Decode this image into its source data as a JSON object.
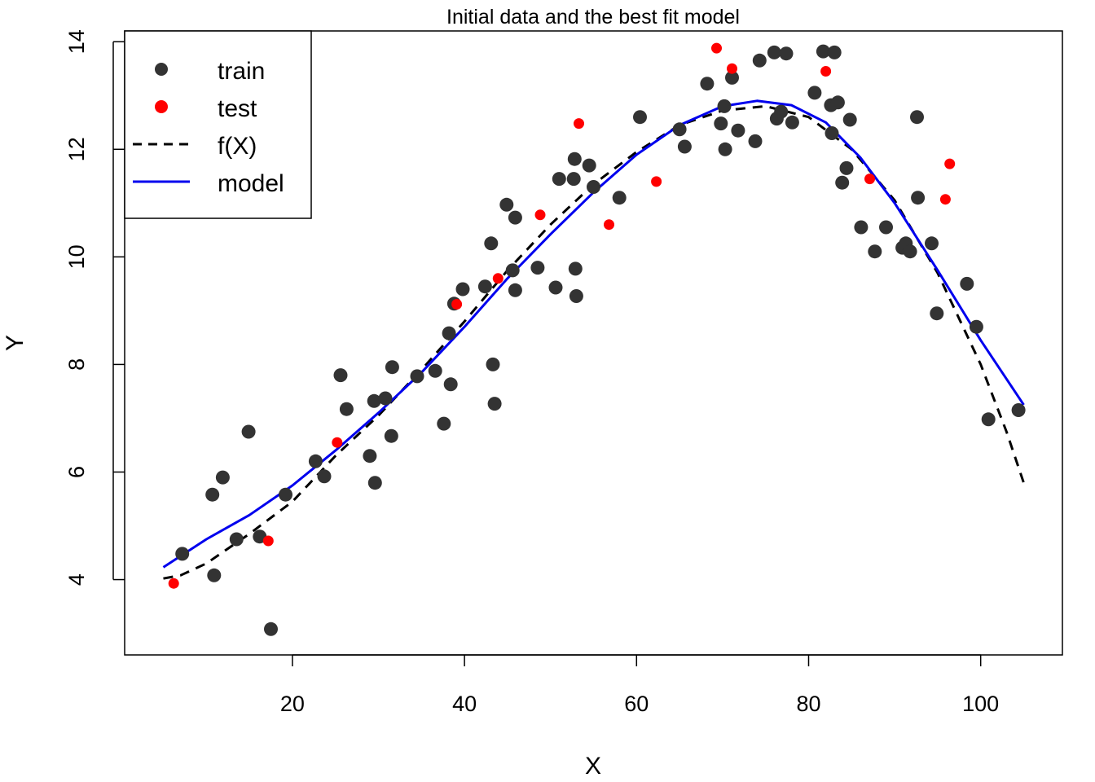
{
  "chart_data": {
    "type": "scatter",
    "title": "Initial data and the best fit model",
    "xlabel": "X",
    "ylabel": "Y",
    "xlim": [
      0.5,
      109.5
    ],
    "ylim": [
      2.6,
      14.2
    ],
    "xticks": [
      20,
      40,
      60,
      80,
      100
    ],
    "yticks": [
      4,
      6,
      8,
      10,
      12,
      14
    ],
    "grid": false,
    "legend_position": "top-left",
    "legend": [
      {
        "label": "train",
        "kind": "point",
        "color": "#333333"
      },
      {
        "label": "test",
        "kind": "point",
        "color": "#ff0000"
      },
      {
        "label": "f(X)",
        "kind": "dashed-line",
        "color": "#000000"
      },
      {
        "label": "model",
        "kind": "line",
        "color": "#0000ee"
      }
    ],
    "series": [
      {
        "name": "train",
        "color": "#333333",
        "points": [
          [
            7.2,
            4.48
          ],
          [
            10.9,
            4.08
          ],
          [
            10.7,
            5.58
          ],
          [
            11.9,
            5.9
          ],
          [
            13.5,
            4.75
          ],
          [
            14.9,
            6.75
          ],
          [
            16.2,
            4.8
          ],
          [
            17.5,
            3.08
          ],
          [
            19.2,
            5.58
          ],
          [
            22.7,
            6.2
          ],
          [
            23.7,
            5.92
          ],
          [
            25.6,
            7.8
          ],
          [
            26.3,
            7.17
          ],
          [
            29.0,
            6.3
          ],
          [
            29.5,
            7.32
          ],
          [
            29.6,
            5.8
          ],
          [
            30.8,
            7.37
          ],
          [
            31.5,
            6.67
          ],
          [
            31.6,
            7.95
          ],
          [
            34.5,
            7.78
          ],
          [
            36.6,
            7.88
          ],
          [
            37.6,
            6.9
          ],
          [
            38.2,
            8.58
          ],
          [
            38.4,
            7.63
          ],
          [
            38.8,
            9.13
          ],
          [
            39.8,
            9.4
          ],
          [
            42.4,
            9.45
          ],
          [
            43.1,
            10.25
          ],
          [
            43.3,
            8.0
          ],
          [
            43.5,
            7.27
          ],
          [
            44.9,
            10.97
          ],
          [
            45.6,
            9.75
          ],
          [
            45.9,
            10.73
          ],
          [
            45.9,
            9.38
          ],
          [
            48.5,
            9.8
          ],
          [
            50.6,
            9.43
          ],
          [
            51.0,
            11.45
          ],
          [
            52.7,
            11.45
          ],
          [
            52.8,
            11.82
          ],
          [
            52.9,
            9.78
          ],
          [
            53.0,
            9.27
          ],
          [
            54.5,
            11.7
          ],
          [
            55.0,
            11.3
          ],
          [
            58.0,
            11.1
          ],
          [
            60.4,
            12.6
          ],
          [
            65.0,
            12.37
          ],
          [
            65.6,
            12.05
          ],
          [
            68.2,
            13.22
          ],
          [
            69.8,
            12.48
          ],
          [
            70.2,
            12.8
          ],
          [
            70.3,
            12.0
          ],
          [
            71.1,
            13.33
          ],
          [
            71.8,
            12.35
          ],
          [
            73.8,
            12.15
          ],
          [
            74.3,
            13.65
          ],
          [
            76.0,
            13.8
          ],
          [
            76.3,
            12.57
          ],
          [
            76.8,
            12.7
          ],
          [
            77.4,
            13.78
          ],
          [
            78.1,
            12.5
          ],
          [
            80.7,
            13.05
          ],
          [
            81.7,
            13.82
          ],
          [
            82.6,
            12.82
          ],
          [
            82.7,
            12.3
          ],
          [
            83.0,
            13.8
          ],
          [
            83.4,
            12.87
          ],
          [
            83.9,
            11.38
          ],
          [
            84.4,
            11.65
          ],
          [
            84.8,
            12.55
          ],
          [
            86.1,
            10.55
          ],
          [
            87.7,
            10.1
          ],
          [
            89.0,
            10.55
          ],
          [
            90.9,
            10.17
          ],
          [
            91.3,
            10.25
          ],
          [
            91.8,
            10.1
          ],
          [
            92.6,
            12.6
          ],
          [
            92.7,
            11.1
          ],
          [
            94.3,
            10.25
          ],
          [
            94.9,
            8.95
          ],
          [
            98.4,
            9.5
          ],
          [
            99.5,
            8.7
          ],
          [
            100.9,
            6.98
          ],
          [
            104.4,
            7.15
          ]
        ]
      },
      {
        "name": "test",
        "color": "#ff0000",
        "points": [
          [
            6.2,
            3.93
          ],
          [
            17.2,
            4.72
          ],
          [
            25.2,
            6.55
          ],
          [
            39.1,
            9.12
          ],
          [
            43.9,
            9.6
          ],
          [
            48.8,
            10.78
          ],
          [
            53.3,
            12.48
          ],
          [
            56.8,
            10.6
          ],
          [
            62.3,
            11.4
          ],
          [
            69.3,
            13.88
          ],
          [
            71.1,
            13.5
          ],
          [
            82.0,
            13.45
          ],
          [
            87.1,
            11.45
          ],
          [
            95.9,
            11.07
          ],
          [
            96.4,
            11.73
          ]
        ]
      },
      {
        "name": "f(X)",
        "color": "#000000",
        "dash": true,
        "points": [
          [
            5,
            4.02
          ],
          [
            7,
            4.08
          ],
          [
            10,
            4.3
          ],
          [
            15,
            4.85
          ],
          [
            20,
            5.45
          ],
          [
            25,
            6.3
          ],
          [
            30,
            7.05
          ],
          [
            35,
            7.9
          ],
          [
            40,
            8.8
          ],
          [
            45,
            9.75
          ],
          [
            50,
            10.6
          ],
          [
            55,
            11.35
          ],
          [
            60,
            11.95
          ],
          [
            65,
            12.45
          ],
          [
            70,
            12.72
          ],
          [
            75,
            12.8
          ],
          [
            80,
            12.6
          ],
          [
            85,
            12.0
          ],
          [
            90,
            11.05
          ],
          [
            95,
            9.7
          ],
          [
            100,
            8.0
          ],
          [
            103,
            6.75
          ],
          [
            105,
            5.8
          ]
        ]
      },
      {
        "name": "model",
        "color": "#0000ee",
        "dash": false,
        "points": [
          [
            5,
            4.23
          ],
          [
            10,
            4.75
          ],
          [
            15,
            5.2
          ],
          [
            20,
            5.75
          ],
          [
            25,
            6.4
          ],
          [
            30,
            7.1
          ],
          [
            35,
            7.85
          ],
          [
            40,
            8.7
          ],
          [
            45,
            9.6
          ],
          [
            50,
            10.42
          ],
          [
            55,
            11.2
          ],
          [
            60,
            11.9
          ],
          [
            65,
            12.45
          ],
          [
            70,
            12.8
          ],
          [
            74,
            12.9
          ],
          [
            78,
            12.82
          ],
          [
            82,
            12.5
          ],
          [
            86,
            11.85
          ],
          [
            90,
            11.0
          ],
          [
            95,
            9.75
          ],
          [
            100,
            8.45
          ],
          [
            105,
            7.25
          ]
        ]
      }
    ]
  }
}
